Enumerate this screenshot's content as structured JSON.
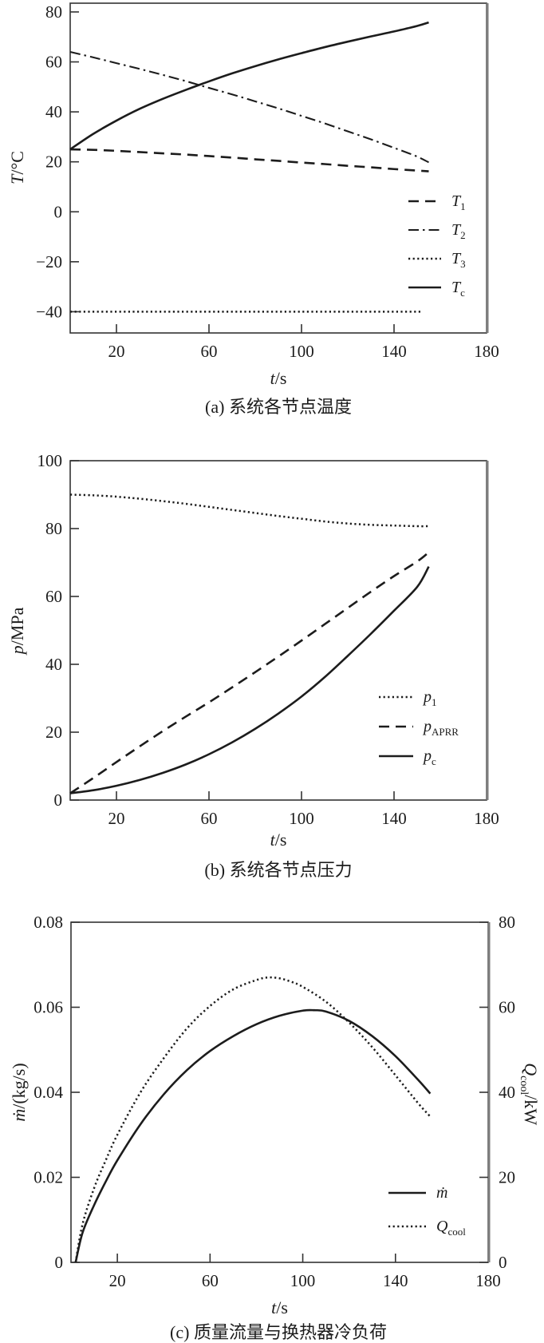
{
  "page": {
    "background": "#ffffff",
    "line_color": "#1c1c1c",
    "frame_color": "#333333"
  },
  "chart_data": [
    {
      "id": "a",
      "type": "line",
      "title": "(a) 系统各节点温度",
      "xlabel_var": "t",
      "xlabel_unit": "/s",
      "ylabel_var": "T",
      "ylabel_unit": "/°C",
      "xlim": [
        0,
        180
      ],
      "ylim": [
        -48.5,
        83.5
      ],
      "grid": false,
      "legend_position": "inside-right",
      "x_ticks": [
        {
          "v": 20,
          "label": "20"
        },
        {
          "v": 60,
          "label": "60"
        },
        {
          "v": 100,
          "label": "100"
        },
        {
          "v": 140,
          "label": "140"
        },
        {
          "v": 180,
          "label": "180"
        }
      ],
      "y_ticks": [
        {
          "v": 80,
          "label": "80"
        },
        {
          "v": 60,
          "label": "60"
        },
        {
          "v": 40,
          "label": "40"
        },
        {
          "v": 20,
          "label": "20"
        },
        {
          "v": 0,
          "label": "0"
        },
        {
          "v": -20,
          "label": "−20"
        },
        {
          "v": -40,
          "label": "−40"
        }
      ],
      "series": [
        {
          "name_main": "T",
          "name_sub": "1",
          "style": "dashed",
          "axis": "left",
          "points": [
            [
              0,
              25
            ],
            [
              10,
              24.8
            ],
            [
              20,
              24.4
            ],
            [
              30,
              23.9
            ],
            [
              40,
              23.4
            ],
            [
              50,
              22.9
            ],
            [
              60,
              22.3
            ],
            [
              70,
              21.7
            ],
            [
              80,
              21.0
            ],
            [
              90,
              20.4
            ],
            [
              100,
              19.7
            ],
            [
              110,
              19.1
            ],
            [
              120,
              18.4
            ],
            [
              130,
              17.8
            ],
            [
              140,
              17.1
            ],
            [
              150,
              16.5
            ],
            [
              155,
              16.2
            ]
          ]
        },
        {
          "name_main": "T",
          "name_sub": "2",
          "style": "dashdot",
          "axis": "left",
          "points": [
            [
              0,
              64
            ],
            [
              10,
              61.8
            ],
            [
              20,
              59.5
            ],
            [
              30,
              57.2
            ],
            [
              40,
              54.8
            ],
            [
              50,
              52.3
            ],
            [
              60,
              49.6
            ],
            [
              70,
              47.0
            ],
            [
              80,
              44.2
            ],
            [
              90,
              41.4
            ],
            [
              100,
              38.4
            ],
            [
              110,
              35.4
            ],
            [
              120,
              32.2
            ],
            [
              130,
              29.0
            ],
            [
              140,
              25.6
            ],
            [
              145,
              23.9
            ],
            [
              150,
              22.1
            ],
            [
              155,
              19.8
            ]
          ]
        },
        {
          "name_main": "T",
          "name_sub": "3",
          "style": "dotted",
          "axis": "left",
          "points": [
            [
              0,
              -40
            ],
            [
              152,
              -40
            ]
          ]
        },
        {
          "name_main": "T",
          "name_sub": "c",
          "style": "solid",
          "axis": "left",
          "points": [
            [
              0,
              25
            ],
            [
              10,
              31.2
            ],
            [
              20,
              36.5
            ],
            [
              30,
              41.2
            ],
            [
              40,
              45.2
            ],
            [
              50,
              48.8
            ],
            [
              60,
              52.2
            ],
            [
              70,
              55.4
            ],
            [
              80,
              58.3
            ],
            [
              90,
              61.0
            ],
            [
              100,
              63.5
            ],
            [
              110,
              65.9
            ],
            [
              120,
              68.1
            ],
            [
              130,
              70.2
            ],
            [
              140,
              72.2
            ],
            [
              150,
              74.4
            ],
            [
              155,
              75.8
            ]
          ]
        }
      ]
    },
    {
      "id": "b",
      "type": "line",
      "title": "(b) 系统各节点压力",
      "xlabel_var": "t",
      "xlabel_unit": "/s",
      "ylabel_var": "p",
      "ylabel_unit": "/MPa",
      "xlim": [
        0,
        180
      ],
      "ylim": [
        0,
        100
      ],
      "grid": false,
      "legend_position": "inside-right",
      "x_ticks": [
        {
          "v": 20,
          "label": "20"
        },
        {
          "v": 60,
          "label": "60"
        },
        {
          "v": 100,
          "label": "100"
        },
        {
          "v": 140,
          "label": "140"
        },
        {
          "v": 180,
          "label": "180"
        }
      ],
      "y_ticks": [
        {
          "v": 100,
          "label": "100"
        },
        {
          "v": 80,
          "label": "80"
        },
        {
          "v": 60,
          "label": "60"
        },
        {
          "v": 40,
          "label": "40"
        },
        {
          "v": 20,
          "label": "20"
        },
        {
          "v": 0,
          "label": "0"
        }
      ],
      "series": [
        {
          "name_main": "p",
          "name_sub": "1",
          "style": "dotted",
          "axis": "left",
          "points": [
            [
              0,
              90
            ],
            [
              10,
              89.8
            ],
            [
              20,
              89.4
            ],
            [
              30,
              88.8
            ],
            [
              40,
              88.1
            ],
            [
              50,
              87.3
            ],
            [
              60,
              86.4
            ],
            [
              70,
              85.5
            ],
            [
              80,
              84.6
            ],
            [
              90,
              83.7
            ],
            [
              100,
              82.9
            ],
            [
              110,
              82.1
            ],
            [
              120,
              81.5
            ],
            [
              130,
              81.1
            ],
            [
              140,
              80.9
            ],
            [
              150,
              80.7
            ],
            [
              155,
              80.7
            ]
          ]
        },
        {
          "name_main": "p",
          "name_sub": "APRR",
          "style": "dashed",
          "axis": "left",
          "points": [
            [
              0,
              2
            ],
            [
              10,
              6.5
            ],
            [
              20,
              11.2
            ],
            [
              30,
              15.8
            ],
            [
              40,
              20.3
            ],
            [
              50,
              24.6
            ],
            [
              60,
              28.8
            ],
            [
              70,
              33.2
            ],
            [
              80,
              37.7
            ],
            [
              90,
              42.3
            ],
            [
              100,
              47.0
            ],
            [
              110,
              51.8
            ],
            [
              120,
              56.6
            ],
            [
              130,
              61.4
            ],
            [
              140,
              66.0
            ],
            [
              150,
              70.3
            ],
            [
              155,
              73.0
            ]
          ]
        },
        {
          "name_main": "p",
          "name_sub": "c",
          "style": "solid",
          "axis": "left",
          "points": [
            [
              0,
              2
            ],
            [
              10,
              2.9
            ],
            [
              20,
              4.2
            ],
            [
              30,
              5.9
            ],
            [
              40,
              8.0
            ],
            [
              50,
              10.5
            ],
            [
              60,
              13.5
            ],
            [
              70,
              17.0
            ],
            [
              80,
              21.0
            ],
            [
              90,
              25.5
            ],
            [
              100,
              30.5
            ],
            [
              110,
              36.2
            ],
            [
              120,
              42.5
            ],
            [
              130,
              49.0
            ],
            [
              140,
              55.8
            ],
            [
              150,
              62.8
            ],
            [
              155,
              68.8
            ]
          ]
        }
      ]
    },
    {
      "id": "c",
      "type": "line",
      "title": "(c) 质量流量与换热器冷负荷",
      "xlabel_var": "t",
      "xlabel_unit": "/s",
      "ylabel_var": "ṁ",
      "ylabel_unit": "/(kg/s)",
      "ylabel2_var": "Q",
      "ylabel2_sub": "cool",
      "ylabel2_unit": "/kW",
      "xlim": [
        0,
        180
      ],
      "ylim": [
        0,
        0.08
      ],
      "ylim2": [
        0,
        80
      ],
      "grid": false,
      "legend_position": "inside-right",
      "x_ticks": [
        {
          "v": 20,
          "label": "20"
        },
        {
          "v": 60,
          "label": "60"
        },
        {
          "v": 100,
          "label": "100"
        },
        {
          "v": 140,
          "label": "140"
        },
        {
          "v": 180,
          "label": "180"
        }
      ],
      "y_ticks": [
        {
          "v": 0.08,
          "label": "0.08"
        },
        {
          "v": 0.06,
          "label": "0.06"
        },
        {
          "v": 0.04,
          "label": "0.04"
        },
        {
          "v": 0.02,
          "label": "0.02"
        },
        {
          "v": 0,
          "label": "0"
        }
      ],
      "y2_ticks": [
        {
          "v": 80,
          "label": "80"
        },
        {
          "v": 60,
          "label": "60"
        },
        {
          "v": 40,
          "label": "40"
        },
        {
          "v": 20,
          "label": "20"
        },
        {
          "v": 0,
          "label": "0"
        }
      ],
      "series": [
        {
          "name_main": "ṁ",
          "name_sub": "",
          "style": "solid",
          "axis": "left",
          "points": [
            [
              2,
              0
            ],
            [
              5,
              0.007
            ],
            [
              10,
              0.0135
            ],
            [
              15,
              0.019
            ],
            [
              20,
              0.024
            ],
            [
              30,
              0.0325
            ],
            [
              40,
              0.0395
            ],
            [
              50,
              0.0452
            ],
            [
              60,
              0.0497
            ],
            [
              70,
              0.0532
            ],
            [
              80,
              0.056
            ],
            [
              90,
              0.058
            ],
            [
              100,
              0.0592
            ],
            [
              105,
              0.0593
            ],
            [
              110,
              0.059
            ],
            [
              120,
              0.0568
            ],
            [
              130,
              0.0532
            ],
            [
              140,
              0.0485
            ],
            [
              150,
              0.0428
            ],
            [
              155,
              0.0397
            ]
          ]
        },
        {
          "name_main": "Q",
          "name_sub": "cool",
          "style": "dotted",
          "axis": "right",
          "points": [
            [
              2,
              0
            ],
            [
              5,
              9
            ],
            [
              10,
              17.5
            ],
            [
              15,
              24
            ],
            [
              20,
              30
            ],
            [
              30,
              40
            ],
            [
              40,
              48
            ],
            [
              50,
              55
            ],
            [
              60,
              60.3
            ],
            [
              70,
              64.2
            ],
            [
              80,
              66.4
            ],
            [
              85,
              67
            ],
            [
              90,
              66.8
            ],
            [
              95,
              66
            ],
            [
              100,
              64.8
            ],
            [
              110,
              61.3
            ],
            [
              120,
              56.4
            ],
            [
              130,
              50.6
            ],
            [
              140,
              44
            ],
            [
              150,
              37.3
            ],
            [
              155,
              34.3
            ]
          ]
        }
      ]
    }
  ]
}
